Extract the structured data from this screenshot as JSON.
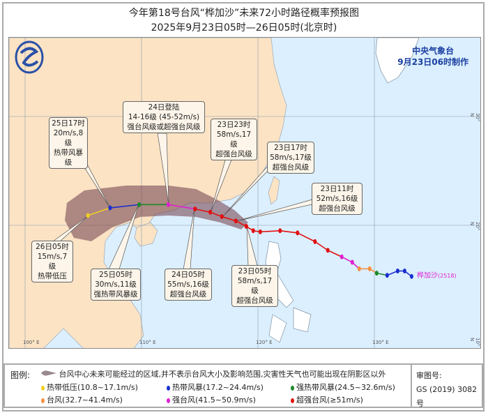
{
  "header": {
    "title": "今年第18号台风“桦加沙”未来72小时路径概率预报图",
    "subtitle": "2025年9月23日05时—26日05时(北京时)"
  },
  "agency": {
    "name": "中央气象台",
    "issued": "9月23日06时制作"
  },
  "storm_label": {
    "name": "桦加沙",
    "code": "(2518)"
  },
  "axes": {
    "lon_labels": [
      "100° E",
      "110° E",
      "120° E",
      "130° E"
    ],
    "lat_labels": [
      "30° N",
      "20° N",
      "10° N"
    ]
  },
  "callouts": [
    {
      "time": "25日17时",
      "wind": "20m/s,8级",
      "level": "热带风暴级"
    },
    {
      "time": "24日登陆",
      "wind": "14-16级 (45-52m/s)",
      "level": "强台风级或超强台风级"
    },
    {
      "time": "23日23时",
      "wind": "58m/s,17级",
      "level": "超强台风级"
    },
    {
      "time": "23日17时",
      "wind": "58m/s,17级",
      "level": "超强台风级"
    },
    {
      "time": "23日11时",
      "wind": "52m/s,16级",
      "level": "超强台风级"
    },
    {
      "time": "26日05时",
      "wind": "15m/s,7级",
      "level": "热带低压"
    },
    {
      "time": "25日05时",
      "wind": "30m/s,11级",
      "level": "强热带风暴级"
    },
    {
      "time": "24日05时",
      "wind": "55m/s,16级",
      "level": "超强台风级"
    },
    {
      "time": "23日05时",
      "wind": "58m/s,17级",
      "level": "超强台风级"
    }
  ],
  "forecast_track": [
    {
      "lon": 119.0,
      "lat": 19.9,
      "cat": "super"
    },
    {
      "lon": 118.1,
      "lat": 20.4,
      "cat": "super"
    },
    {
      "lon": 116.9,
      "lat": 20.8,
      "cat": "super"
    },
    {
      "lon": 115.9,
      "lat": 21.2,
      "cat": "super"
    },
    {
      "lon": 114.6,
      "lat": 21.5,
      "cat": "super"
    },
    {
      "lon": 112.3,
      "lat": 21.9,
      "cat": "severe"
    },
    {
      "lon": 109.8,
      "lat": 21.9,
      "cat": "sts"
    },
    {
      "lon": 107.3,
      "lat": 21.6,
      "cat": "ts"
    },
    {
      "lon": 105.4,
      "lat": 20.9,
      "cat": "td"
    }
  ],
  "past_track": [
    {
      "lon": 133.2,
      "lat": 15.3,
      "cat": "ts"
    },
    {
      "lon": 132.6,
      "lat": 15.8,
      "cat": "ts"
    },
    {
      "lon": 132.0,
      "lat": 15.8,
      "cat": "ts"
    },
    {
      "lon": 131.1,
      "lat": 15.4,
      "cat": "ts"
    },
    {
      "lon": 130.2,
      "lat": 15.6,
      "cat": "sts"
    },
    {
      "lon": 129.6,
      "lat": 16.0,
      "cat": "ty"
    },
    {
      "lon": 128.7,
      "lat": 16.0,
      "cat": "ty"
    },
    {
      "lon": 128.1,
      "lat": 16.6,
      "cat": "severe"
    },
    {
      "lon": 127.2,
      "lat": 17.1,
      "cat": "severe"
    },
    {
      "lon": 126.0,
      "lat": 17.7,
      "cat": "super"
    },
    {
      "lon": 124.9,
      "lat": 18.5,
      "cat": "super"
    },
    {
      "lon": 123.4,
      "lat": 19.3,
      "cat": "super"
    },
    {
      "lon": 121.9,
      "lat": 19.5,
      "cat": "super"
    },
    {
      "lon": 120.2,
      "lat": 19.4,
      "cat": "super"
    },
    {
      "lon": 119.6,
      "lat": 19.5,
      "cat": "super"
    },
    {
      "lon": 119.0,
      "lat": 19.9,
      "cat": "super"
    }
  ],
  "colors": {
    "td": "#f0d020",
    "ts": "#1a2fd0",
    "sts": "#1a8a2a",
    "ty": "#f59040",
    "severe": "#e020d0",
    "super": "#e01010",
    "land": "#fbe3c4",
    "sea": "#dcefff",
    "cone": "#7a4a55"
  },
  "legend": {
    "label": "图例:",
    "cone_text": "台风中心未来可能经过的区域,并不表示台风大小及影响范围,灾害性天气也可能出现在阴影区以外",
    "items": [
      {
        "cat": "td",
        "text": "热带低压(10.8~17.1m/s)"
      },
      {
        "cat": "ts",
        "text": "热带风暴(17.2~24.4m/s)"
      },
      {
        "cat": "sts",
        "text": "强热带风暴(24.5~32.6m/s)"
      },
      {
        "cat": "ty",
        "text": "台风(32.7~41.4m/s)"
      },
      {
        "cat": "severe",
        "text": "强台风(41.5~50.9m/s)"
      },
      {
        "cat": "super",
        "text": "超强台风(≥51m/s)"
      }
    ],
    "approval_label": "审图号:",
    "approval_number": "GS (2019) 3082号"
  }
}
